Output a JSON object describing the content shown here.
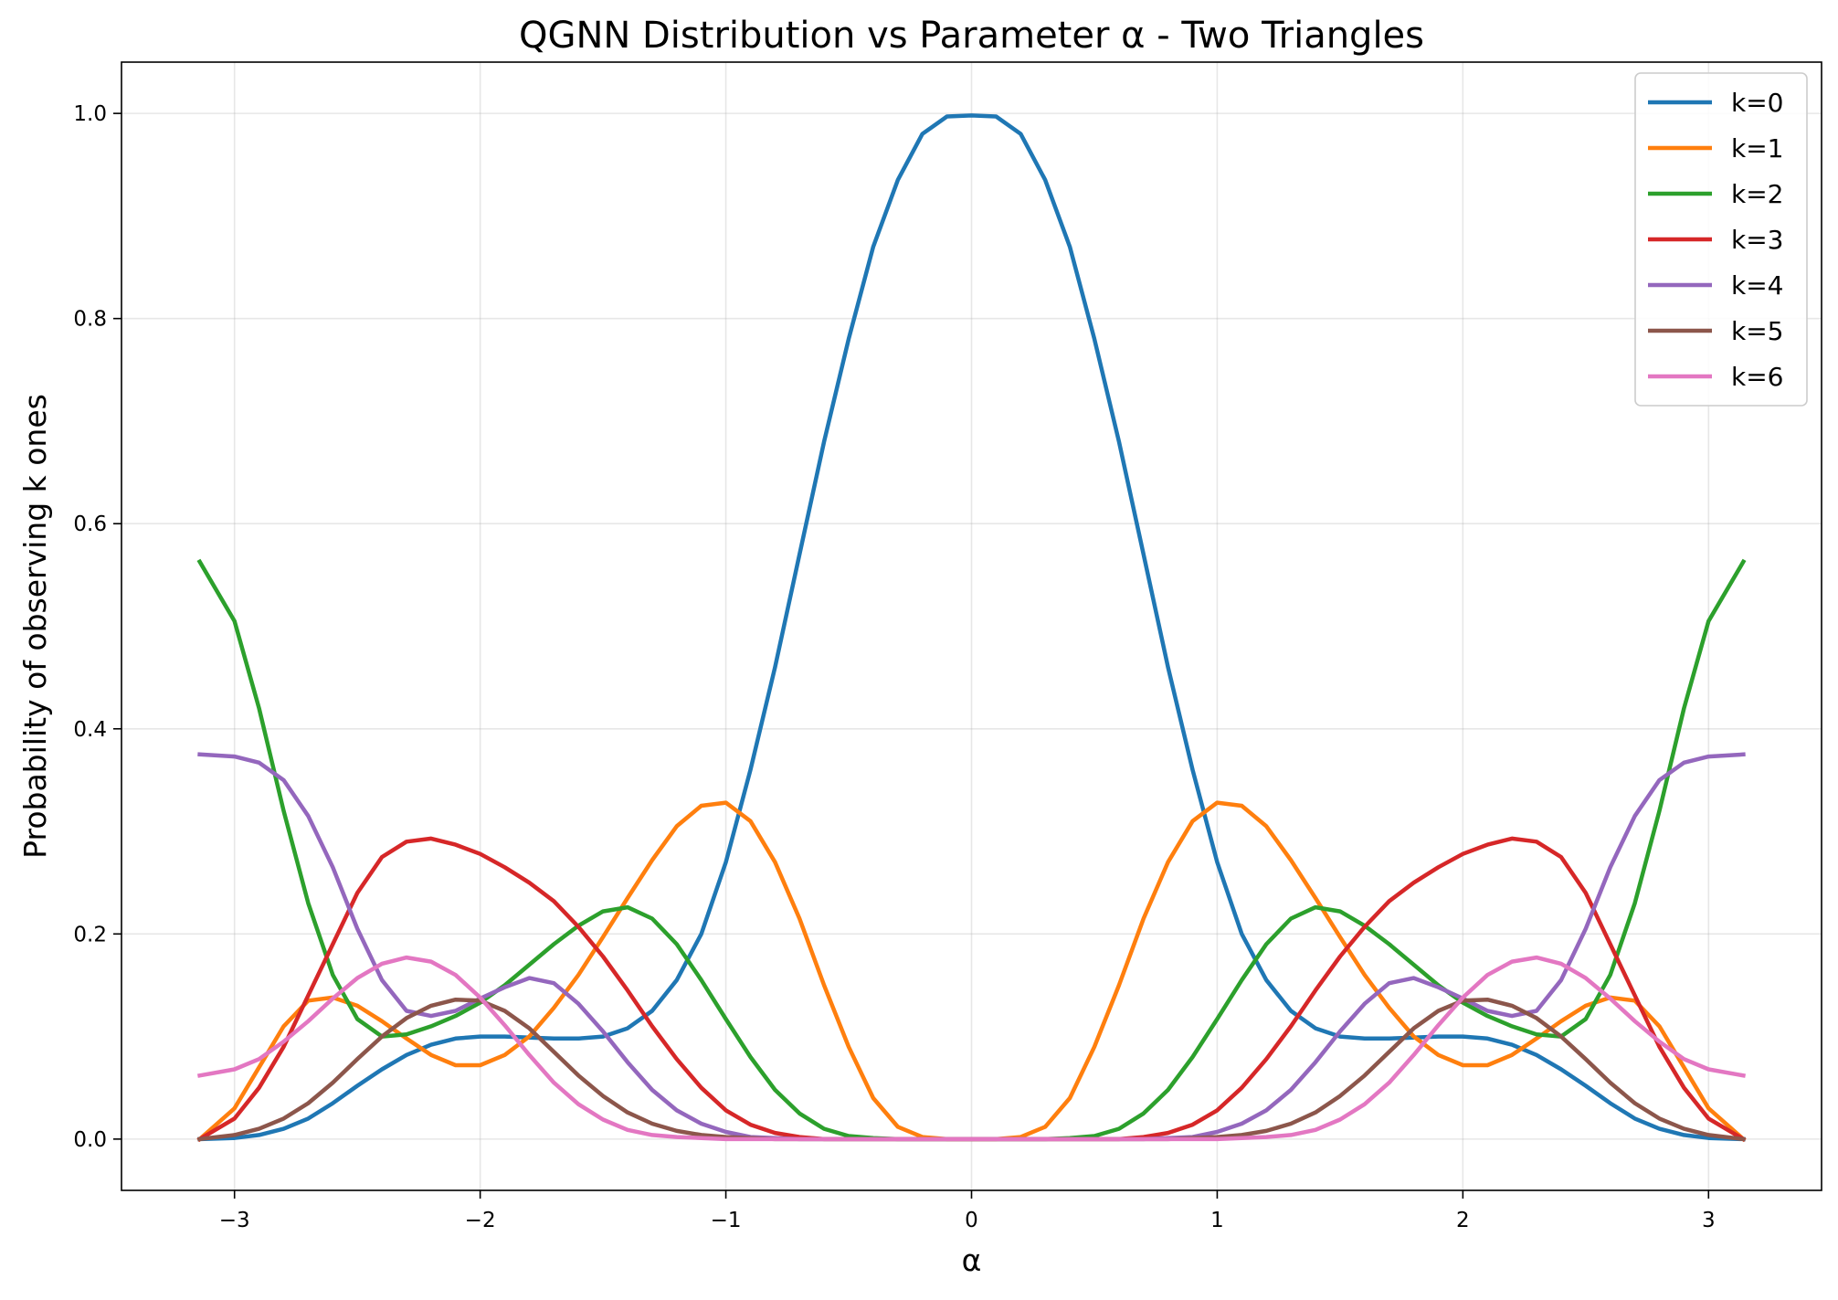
{
  "chart_data": {
    "type": "line",
    "title": "QGNN Distribution vs Parameter α - Two Triangles",
    "xlabel": "α",
    "ylabel": "Probability of observing k ones",
    "xlim": [
      -3.46,
      3.46
    ],
    "ylim": [
      -0.05,
      1.05
    ],
    "xticks": [
      -3,
      -2,
      -1,
      0,
      1,
      2,
      3
    ],
    "xtick_labels": [
      "−3",
      "−2",
      "−1",
      "0",
      "1",
      "2",
      "3"
    ],
    "yticks": [
      0.0,
      0.2,
      0.4,
      0.6,
      0.8,
      1.0
    ],
    "ytick_labels": [
      "0.0",
      "0.2",
      "0.4",
      "0.6",
      "0.8",
      "1.0"
    ],
    "grid": true,
    "legend_position": "top-right",
    "x": [
      -3.1416,
      -3.0,
      -2.9,
      -2.8,
      -2.7,
      -2.6,
      -2.5,
      -2.4,
      -2.3,
      -2.2,
      -2.1,
      -2.0,
      -1.9,
      -1.8,
      -1.7,
      -1.6,
      -1.5,
      -1.4,
      -1.3,
      -1.2,
      -1.1,
      -1.0,
      -0.9,
      -0.8,
      -0.7,
      -0.6,
      -0.5,
      -0.4,
      -0.3,
      -0.2,
      -0.1,
      0.0,
      0.1,
      0.2,
      0.3,
      0.4,
      0.5,
      0.6,
      0.7,
      0.8,
      0.9,
      1.0,
      1.1,
      1.2,
      1.3,
      1.4,
      1.5,
      1.6,
      1.7,
      1.8,
      1.9,
      2.0,
      2.1,
      2.2,
      2.3,
      2.4,
      2.5,
      2.6,
      2.7,
      2.8,
      2.9,
      3.0,
      3.1416
    ],
    "series": [
      {
        "name": "k=0",
        "color": "#1f77b4",
        "values": [
          0.0,
          0.001,
          0.004,
          0.01,
          0.02,
          0.035,
          0.052,
          0.068,
          0.082,
          0.092,
          0.098,
          0.1,
          0.1,
          0.099,
          0.098,
          0.098,
          0.1,
          0.108,
          0.125,
          0.155,
          0.2,
          0.27,
          0.36,
          0.46,
          0.57,
          0.68,
          0.78,
          0.87,
          0.935,
          0.98,
          0.997,
          0.998,
          0.997,
          0.98,
          0.935,
          0.87,
          0.78,
          0.68,
          0.57,
          0.46,
          0.36,
          0.27,
          0.2,
          0.155,
          0.125,
          0.108,
          0.1,
          0.098,
          0.098,
          0.099,
          0.1,
          0.1,
          0.098,
          0.092,
          0.082,
          0.068,
          0.052,
          0.035,
          0.02,
          0.01,
          0.004,
          0.001,
          0.0
        ]
      },
      {
        "name": "k=1",
        "color": "#ff7f0e",
        "values": [
          0.0,
          0.03,
          0.07,
          0.11,
          0.135,
          0.138,
          0.13,
          0.115,
          0.098,
          0.082,
          0.072,
          0.072,
          0.082,
          0.1,
          0.128,
          0.16,
          0.197,
          0.235,
          0.272,
          0.305,
          0.325,
          0.328,
          0.31,
          0.27,
          0.215,
          0.15,
          0.09,
          0.04,
          0.012,
          0.002,
          0.0,
          0.0,
          0.0,
          0.002,
          0.012,
          0.04,
          0.09,
          0.15,
          0.215,
          0.27,
          0.31,
          0.328,
          0.325,
          0.305,
          0.272,
          0.235,
          0.197,
          0.16,
          0.128,
          0.1,
          0.082,
          0.072,
          0.072,
          0.082,
          0.098,
          0.115,
          0.13,
          0.138,
          0.135,
          0.11,
          0.07,
          0.03,
          0.0
        ]
      },
      {
        "name": "k=2",
        "color": "#2ca02c",
        "values": [
          0.563,
          0.505,
          0.42,
          0.32,
          0.23,
          0.16,
          0.117,
          0.1,
          0.102,
          0.11,
          0.12,
          0.133,
          0.15,
          0.17,
          0.19,
          0.208,
          0.222,
          0.226,
          0.215,
          0.19,
          0.155,
          0.117,
          0.08,
          0.048,
          0.025,
          0.01,
          0.003,
          0.001,
          0.0,
          0.0,
          0.0,
          0.0,
          0.0,
          0.0,
          0.0,
          0.001,
          0.003,
          0.01,
          0.025,
          0.048,
          0.08,
          0.117,
          0.155,
          0.19,
          0.215,
          0.226,
          0.222,
          0.208,
          0.19,
          0.17,
          0.15,
          0.133,
          0.12,
          0.11,
          0.102,
          0.1,
          0.117,
          0.16,
          0.23,
          0.32,
          0.42,
          0.505,
          0.563
        ]
      },
      {
        "name": "k=3",
        "color": "#d62728",
        "values": [
          0.0,
          0.02,
          0.05,
          0.09,
          0.14,
          0.19,
          0.24,
          0.275,
          0.29,
          0.293,
          0.287,
          0.278,
          0.265,
          0.25,
          0.232,
          0.207,
          0.178,
          0.145,
          0.11,
          0.078,
          0.05,
          0.028,
          0.014,
          0.006,
          0.002,
          0.0,
          0.0,
          0.0,
          0.0,
          0.0,
          0.0,
          0.0,
          0.0,
          0.0,
          0.0,
          0.0,
          0.0,
          0.0,
          0.002,
          0.006,
          0.014,
          0.028,
          0.05,
          0.078,
          0.11,
          0.145,
          0.178,
          0.207,
          0.232,
          0.25,
          0.265,
          0.278,
          0.287,
          0.293,
          0.29,
          0.275,
          0.24,
          0.19,
          0.14,
          0.09,
          0.05,
          0.02,
          0.0
        ]
      },
      {
        "name": "k=4",
        "color": "#9467bd",
        "values": [
          0.375,
          0.373,
          0.367,
          0.35,
          0.315,
          0.265,
          0.205,
          0.155,
          0.125,
          0.12,
          0.125,
          0.137,
          0.148,
          0.157,
          0.152,
          0.132,
          0.105,
          0.075,
          0.048,
          0.028,
          0.015,
          0.007,
          0.002,
          0.001,
          0.0,
          0.0,
          0.0,
          0.0,
          0.0,
          0.0,
          0.0,
          0.0,
          0.0,
          0.0,
          0.0,
          0.0,
          0.0,
          0.0,
          0.0,
          0.001,
          0.002,
          0.007,
          0.015,
          0.028,
          0.048,
          0.075,
          0.105,
          0.132,
          0.152,
          0.157,
          0.148,
          0.137,
          0.125,
          0.12,
          0.125,
          0.155,
          0.205,
          0.265,
          0.315,
          0.35,
          0.367,
          0.373,
          0.375
        ]
      },
      {
        "name": "k=5",
        "color": "#8c564b",
        "values": [
          0.0,
          0.004,
          0.01,
          0.02,
          0.035,
          0.055,
          0.078,
          0.1,
          0.118,
          0.13,
          0.136,
          0.135,
          0.125,
          0.108,
          0.085,
          0.062,
          0.042,
          0.026,
          0.015,
          0.008,
          0.004,
          0.002,
          0.001,
          0.0,
          0.0,
          0.0,
          0.0,
          0.0,
          0.0,
          0.0,
          0.0,
          0.0,
          0.0,
          0.0,
          0.0,
          0.0,
          0.0,
          0.0,
          0.0,
          0.0,
          0.001,
          0.002,
          0.004,
          0.008,
          0.015,
          0.026,
          0.042,
          0.062,
          0.085,
          0.108,
          0.125,
          0.135,
          0.136,
          0.13,
          0.118,
          0.1,
          0.078,
          0.055,
          0.035,
          0.02,
          0.01,
          0.004,
          0.0
        ]
      },
      {
        "name": "k=6",
        "color": "#e377c2",
        "values": [
          0.062,
          0.068,
          0.078,
          0.095,
          0.115,
          0.137,
          0.157,
          0.171,
          0.177,
          0.173,
          0.16,
          0.138,
          0.111,
          0.082,
          0.055,
          0.034,
          0.019,
          0.009,
          0.004,
          0.002,
          0.001,
          0.0,
          0.0,
          0.0,
          0.0,
          0.0,
          0.0,
          0.0,
          0.0,
          0.0,
          0.0,
          0.0,
          0.0,
          0.0,
          0.0,
          0.0,
          0.0,
          0.0,
          0.0,
          0.0,
          0.0,
          0.0,
          0.001,
          0.002,
          0.004,
          0.009,
          0.019,
          0.034,
          0.055,
          0.082,
          0.111,
          0.138,
          0.16,
          0.173,
          0.177,
          0.171,
          0.157,
          0.137,
          0.115,
          0.095,
          0.078,
          0.068,
          0.062
        ]
      }
    ]
  }
}
